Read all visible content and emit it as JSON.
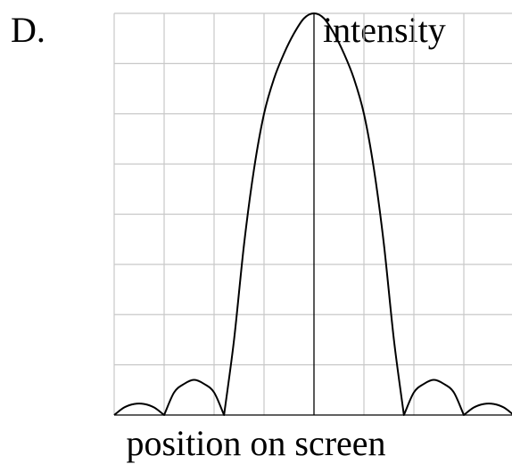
{
  "option_label": "D.",
  "chart_data": {
    "type": "line",
    "title": "",
    "xlabel": "position on screen",
    "ylabel": "intensity",
    "xlim": [
      -4,
      4
    ],
    "ylim": [
      0,
      8
    ],
    "grid": true,
    "tick_labels": false,
    "x": [
      -4,
      -3.8,
      -3.6,
      -3.4,
      -3.2,
      -3.0,
      -2.8,
      -2.6,
      -2.4,
      -2.2,
      -2.0,
      -1.8,
      -1.6,
      -1.4,
      -1.2,
      -1.0,
      -0.8,
      -0.6,
      -0.4,
      -0.2,
      0,
      0.2,
      0.4,
      0.6,
      0.8,
      1.0,
      1.2,
      1.4,
      1.6,
      1.8,
      2.0,
      2.2,
      2.4,
      2.6,
      2.8,
      3.0,
      3.2,
      3.4,
      3.6,
      3.8,
      4
    ],
    "series": [
      {
        "values": [
          0,
          0.15,
          0.22,
          0.22,
          0.15,
          0,
          0.45,
          0.62,
          0.7,
          0.62,
          0.45,
          0,
          1.5,
          3.4,
          4.9,
          6.0,
          6.7,
          7.2,
          7.6,
          7.9,
          8.0,
          7.9,
          7.6,
          7.2,
          6.7,
          6.0,
          4.9,
          3.4,
          1.5,
          0,
          0.45,
          0.62,
          0.7,
          0.62,
          0.45,
          0,
          0.15,
          0.22,
          0.22,
          0.15,
          0
        ]
      }
    ]
  }
}
